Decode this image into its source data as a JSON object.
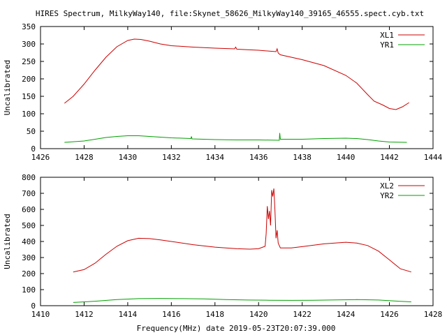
{
  "figure": {
    "title": "HIRES Spectrum, MilkyWay140, file:Skynet_58626_MilkyWay140_39165_46555.spect.cyb.txt",
    "xlabel": "Frequency(MHz) date 2019-05-23T20:07:39.000"
  },
  "chart_data": [
    {
      "type": "line",
      "ylabel": "Uncalibrated",
      "xlim": [
        1426,
        1444
      ],
      "ylim": [
        0,
        350
      ],
      "xticks": [
        1426,
        1428,
        1430,
        1432,
        1434,
        1436,
        1438,
        1440,
        1442,
        1444
      ],
      "yticks": [
        0,
        50,
        100,
        150,
        200,
        250,
        300,
        350
      ],
      "legend_position": "top-right",
      "series": [
        {
          "name": "XL1",
          "color": "#cc0000",
          "points": [
            [
              1427.1,
              130
            ],
            [
              1427.5,
              150
            ],
            [
              1428,
              185
            ],
            [
              1428.5,
              225
            ],
            [
              1429,
              262
            ],
            [
              1429.5,
              292
            ],
            [
              1430,
              310
            ],
            [
              1430.3,
              314
            ],
            [
              1430.6,
              313
            ],
            [
              1431,
              308
            ],
            [
              1431.5,
              300
            ],
            [
              1432,
              295
            ],
            [
              1433,
              291
            ],
            [
              1434,
              288
            ],
            [
              1434.9,
              286
            ],
            [
              1434.95,
              291
            ],
            [
              1435,
              285
            ],
            [
              1436,
              282
            ],
            [
              1436.8,
              278
            ],
            [
              1436.85,
              286
            ],
            [
              1436.9,
              274
            ],
            [
              1437,
              269
            ],
            [
              1438,
              255
            ],
            [
              1439,
              238
            ],
            [
              1440,
              210
            ],
            [
              1440.5,
              188
            ],
            [
              1441,
              155
            ],
            [
              1441.3,
              136
            ],
            [
              1441.7,
              125
            ],
            [
              1442,
              115
            ],
            [
              1442.3,
              112
            ],
            [
              1442.6,
              120
            ],
            [
              1442.9,
              132
            ]
          ],
          "spikes": [
            [
              1434.95,
              291
            ],
            [
              1436.85,
              286
            ]
          ]
        },
        {
          "name": "YR1",
          "color": "#00a000",
          "points": [
            [
              1427.1,
              18
            ],
            [
              1428,
              22
            ],
            [
              1429,
              32
            ],
            [
              1429.5,
              35
            ],
            [
              1430,
              37
            ],
            [
              1430.5,
              37
            ],
            [
              1431,
              35
            ],
            [
              1432,
              31
            ],
            [
              1432.9,
              29
            ],
            [
              1432.92,
              35
            ],
            [
              1432.95,
              28
            ],
            [
              1434,
              26
            ],
            [
              1435,
              25
            ],
            [
              1436,
              25
            ],
            [
              1436.95,
              24
            ],
            [
              1436.97,
              45
            ],
            [
              1437,
              27
            ],
            [
              1438,
              27
            ],
            [
              1439,
              29
            ],
            [
              1440,
              30
            ],
            [
              1440.5,
              29
            ],
            [
              1441,
              26
            ],
            [
              1441.5,
              22
            ],
            [
              1442,
              19
            ],
            [
              1442.8,
              18
            ]
          ]
        }
      ]
    },
    {
      "type": "line",
      "ylabel": "Uncalibrated",
      "xlim": [
        1410,
        1428
      ],
      "ylim": [
        0,
        800
      ],
      "xticks": [
        1410,
        1412,
        1414,
        1416,
        1418,
        1420,
        1422,
        1424,
        1426,
        1428
      ],
      "yticks": [
        0,
        100,
        200,
        300,
        400,
        500,
        600,
        700,
        800
      ],
      "legend_position": "top-right",
      "series": [
        {
          "name": "XL2",
          "color": "#cc0000",
          "points": [
            [
              1411.5,
              210
            ],
            [
              1412,
              225
            ],
            [
              1412.5,
              265
            ],
            [
              1413,
              320
            ],
            [
              1413.5,
              370
            ],
            [
              1414,
              405
            ],
            [
              1414.5,
              420
            ],
            [
              1415,
              418
            ],
            [
              1415.5,
              410
            ],
            [
              1416,
              400
            ],
            [
              1417,
              380
            ],
            [
              1418,
              365
            ],
            [
              1419,
              355
            ],
            [
              1419.6,
              352
            ],
            [
              1420,
              355
            ],
            [
              1420.3,
              370
            ],
            [
              1420.35,
              450
            ],
            [
              1420.4,
              620
            ],
            [
              1420.45,
              540
            ],
            [
              1420.5,
              590
            ],
            [
              1420.55,
              500
            ],
            [
              1420.6,
              720
            ],
            [
              1420.65,
              680
            ],
            [
              1420.7,
              730
            ],
            [
              1420.75,
              600
            ],
            [
              1420.8,
              420
            ],
            [
              1420.85,
              470
            ],
            [
              1420.9,
              390
            ],
            [
              1421,
              360
            ],
            [
              1421.5,
              360
            ],
            [
              1422,
              368
            ],
            [
              1423,
              385
            ],
            [
              1424,
              395
            ],
            [
              1424.5,
              390
            ],
            [
              1425,
              375
            ],
            [
              1425.5,
              340
            ],
            [
              1426,
              285
            ],
            [
              1426.5,
              230
            ],
            [
              1427,
              210
            ]
          ]
        },
        {
          "name": "YR2",
          "color": "#00a000",
          "points": [
            [
              1411.5,
              20
            ],
            [
              1412.5,
              28
            ],
            [
              1413.5,
              38
            ],
            [
              1414.5,
              44
            ],
            [
              1415.5,
              45
            ],
            [
              1416.5,
              44
            ],
            [
              1417.5,
              42
            ],
            [
              1418.5,
              38
            ],
            [
              1419.5,
              35
            ],
            [
              1420.5,
              34
            ],
            [
              1421.5,
              33
            ],
            [
              1422.5,
              34
            ],
            [
              1423.5,
              36
            ],
            [
              1424.5,
              38
            ],
            [
              1425.5,
              35
            ],
            [
              1426.5,
              27
            ],
            [
              1427,
              24
            ]
          ]
        }
      ]
    }
  ]
}
